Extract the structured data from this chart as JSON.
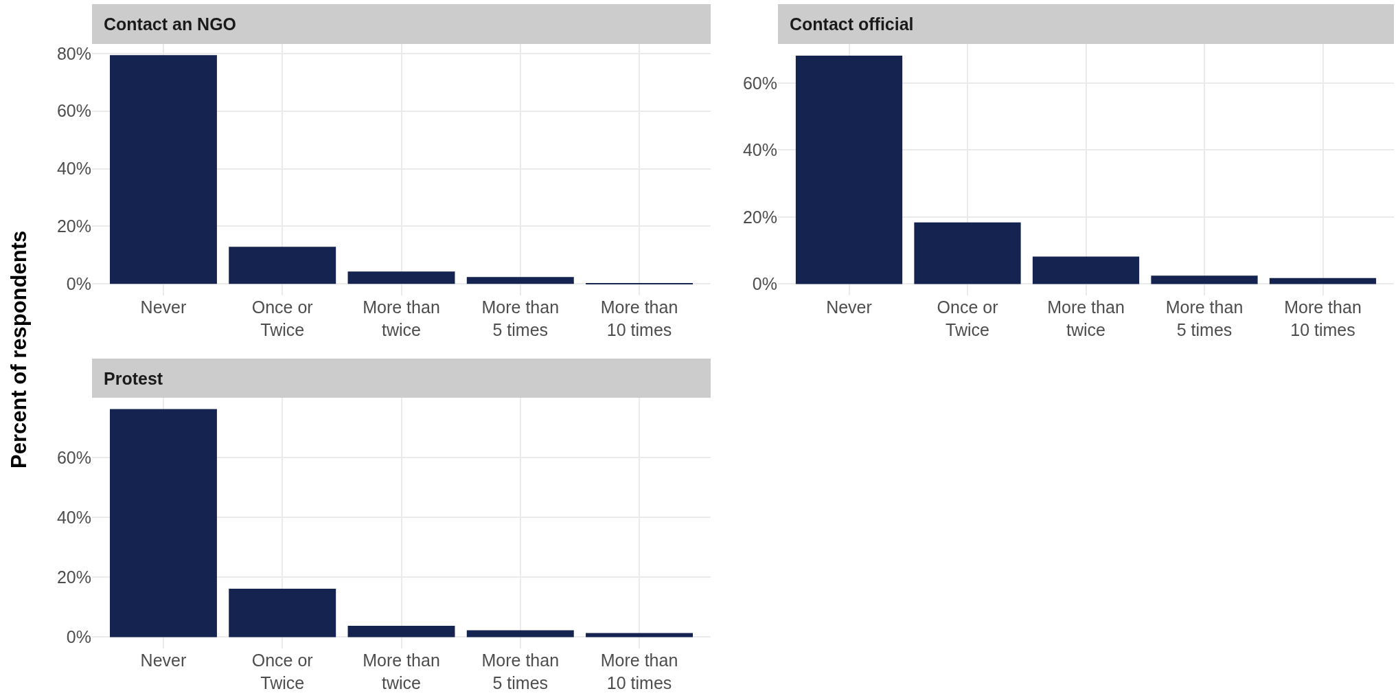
{
  "chart_data": [
    {
      "type": "bar",
      "title": "Contact an NGO",
      "ylabel": "Percent of respondents",
      "categories": [
        "Never",
        "Once or\nTwice",
        "More than\ntwice",
        "More than\n5 times",
        "More than\n10 times"
      ],
      "values": [
        79.4,
        12.9,
        4.3,
        2.4,
        0.3
      ],
      "color": "#14234f",
      "ylim": [
        -4,
        83.3
      ],
      "yticks": [
        {
          "value": 0,
          "label": "0%"
        },
        {
          "value": 20,
          "label": "20%"
        },
        {
          "value": 40,
          "label": "40%"
        },
        {
          "value": 60,
          "label": "60%"
        },
        {
          "value": 80,
          "label": "80%"
        }
      ],
      "grid": true
    },
    {
      "type": "bar",
      "title": "Contact official",
      "categories": [
        "Never",
        "Once or\nTwice",
        "More than\ntwice",
        "More than\n5 times",
        "More than\n10 times"
      ],
      "values": [
        68.2,
        18.4,
        8.2,
        2.5,
        1.8
      ],
      "color": "#14234f",
      "ylim": [
        -3.4,
        71.7
      ],
      "yticks": [
        {
          "value": 0,
          "label": "0%"
        },
        {
          "value": 20,
          "label": "20%"
        },
        {
          "value": 40,
          "label": "40%"
        },
        {
          "value": 60,
          "label": "60%"
        }
      ],
      "grid": true
    },
    {
      "type": "bar",
      "title": "Protest",
      "categories": [
        "Never",
        "Once or\nTwice",
        "More than\ntwice",
        "More than\n5 times",
        "More than\n10 times"
      ],
      "values": [
        76.3,
        16.2,
        3.8,
        2.3,
        1.4
      ],
      "color": "#14234f",
      "ylim": [
        -3.8,
        80.1
      ],
      "yticks": [
        {
          "value": 0,
          "label": "0%"
        },
        {
          "value": 20,
          "label": "20%"
        },
        {
          "value": 40,
          "label": "40%"
        },
        {
          "value": 60,
          "label": "60%"
        }
      ],
      "grid": true
    }
  ]
}
